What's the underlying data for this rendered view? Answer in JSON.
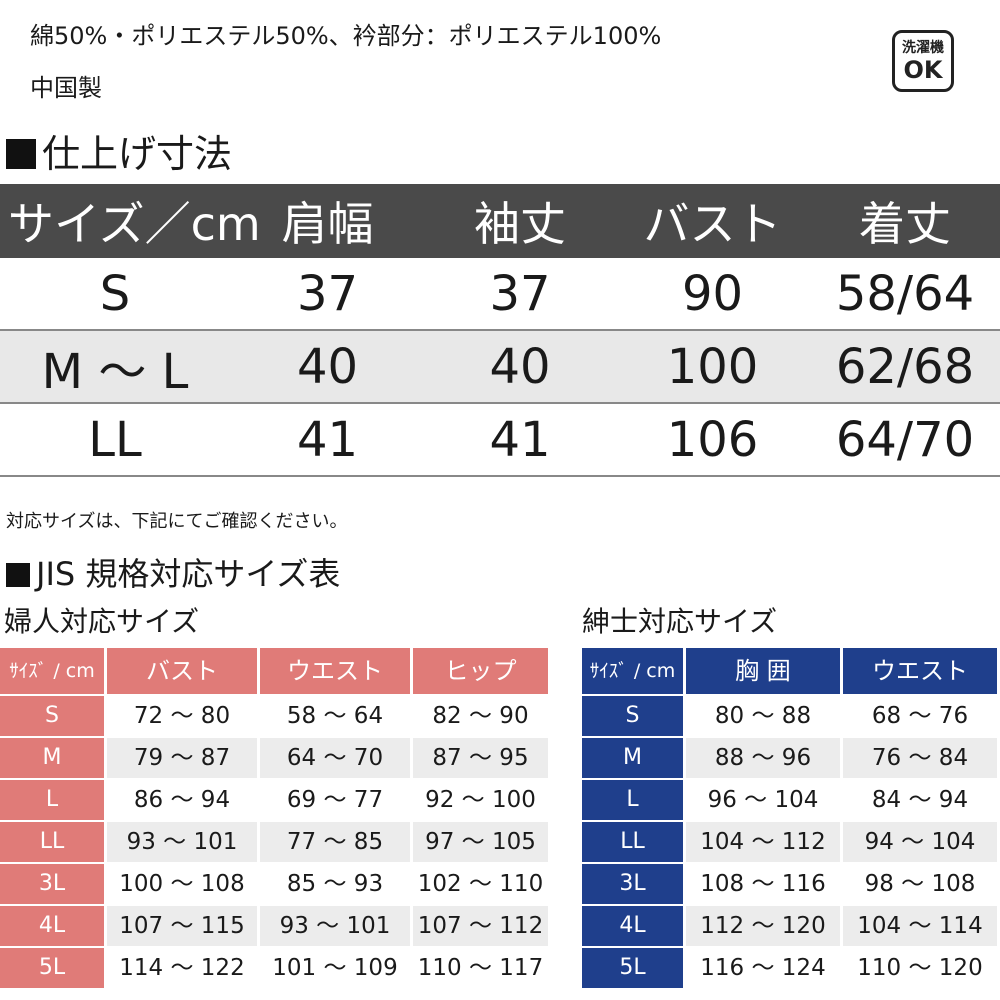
{
  "header": {
    "material": "綿50%・ポリエステル50%、衿部分：ポリエステル100%",
    "origin": "中国製",
    "wash_badge": {
      "line1": "洗濯機",
      "line2": "OK"
    }
  },
  "finished_size": {
    "title": "仕上げ寸法",
    "columns": [
      "サイズ／cm",
      "肩幅",
      "袖丈",
      "バスト",
      "着丈"
    ],
    "rows": [
      [
        "S",
        "37",
        "37",
        "90",
        "58/64"
      ],
      [
        "M ～ L",
        "40",
        "40",
        "100",
        "62/68"
      ],
      [
        "LL",
        "41",
        "41",
        "106",
        "64/70"
      ]
    ]
  },
  "note": "対応サイズは、下記にてご確認ください。",
  "jis": {
    "title": "JIS 規格対応サイズ表",
    "women": {
      "title": "婦人対応サイズ",
      "color": "#e07b78",
      "columns": [
        "ｻｲｽﾞ / cm",
        "バスト",
        "ウエスト",
        "ヒップ"
      ],
      "rows": [
        [
          "S",
          "72 ～ 80",
          "58 ～ 64",
          "82 ～ 90"
        ],
        [
          "M",
          "79 ～ 87",
          "64 ～ 70",
          "87 ～ 95"
        ],
        [
          "L",
          "86 ～ 94",
          "69 ～ 77",
          "92 ～ 100"
        ],
        [
          "LL",
          "93 ～ 101",
          "77 ～ 85",
          "97 ～ 105"
        ],
        [
          "3L",
          "100 ～ 108",
          "85 ～ 93",
          "102 ～ 110"
        ],
        [
          "4L",
          "107 ～ 115",
          "93 ～ 101",
          "107 ～ 112"
        ],
        [
          "5L",
          "114 ～ 122",
          "101 ～ 109",
          "110 ～ 117"
        ]
      ]
    },
    "men": {
      "title": "紳士対応サイズ",
      "color": "#1f3f8c",
      "columns": [
        "ｻｲｽﾞ / cm",
        "胸 囲",
        "ウエスト"
      ],
      "rows": [
        [
          "S",
          "80 ～ 88",
          "68 ～ 76"
        ],
        [
          "M",
          "88 ～ 96",
          "76 ～ 84"
        ],
        [
          "L",
          "96 ～ 104",
          "84 ～ 94"
        ],
        [
          "LL",
          "104 ～ 112",
          "94 ～ 104"
        ],
        [
          "3L",
          "108 ～ 116",
          "98 ～ 108"
        ],
        [
          "4L",
          "112 ～ 120",
          "104 ～ 114"
        ],
        [
          "5L",
          "116 ～ 124",
          "110 ～ 120"
        ]
      ]
    }
  }
}
